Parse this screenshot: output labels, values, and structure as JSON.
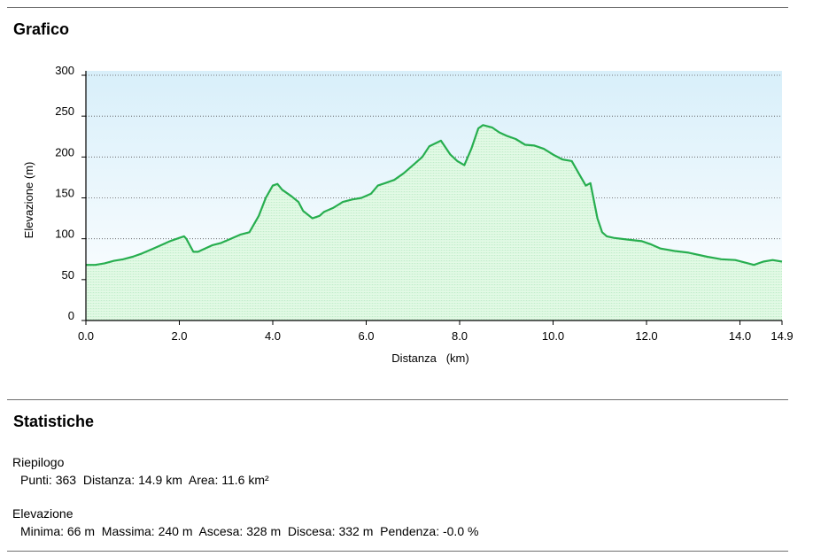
{
  "sections": {
    "chart_title": "Grafico",
    "stats_title": "Statistiche"
  },
  "summary": {
    "heading": "Riepilogo",
    "line": "Punti: 363  Distanza: 14.9 km  Area: 11.6 km²"
  },
  "elevation_stats": {
    "heading": "Elevazione",
    "line": "Minima: 66 m  Massima: 240 m  Ascesa: 328 m  Discesa: 332 m  Pendenza: -0.0 %"
  },
  "colors": {
    "line": "#27ae4f",
    "fill_bottom": "#e8fbe8",
    "sky_top": "#d8effa",
    "sky_bottom": "#ffffff",
    "grid": "#555555"
  },
  "chart_data": {
    "type": "area",
    "xlabel": "Distanza   (km)",
    "ylabel": "Elevazione (m)",
    "xlim": [
      0,
      14.9
    ],
    "ylim": [
      0,
      300
    ],
    "x_ticks": [
      "0.0",
      "2.0",
      "4.0",
      "6.0",
      "8.0",
      "10.0",
      "12.0",
      "14.0",
      "14.9"
    ],
    "x_tick_values": [
      0,
      2,
      4,
      6,
      8,
      10,
      12,
      14,
      14.9
    ],
    "y_ticks": [
      "0",
      "50",
      "100",
      "150",
      "200",
      "250",
      "300"
    ],
    "y_tick_values": [
      0,
      50,
      100,
      150,
      200,
      250,
      300
    ],
    "grid": "horizontal dotted",
    "series": [
      {
        "x": [
          0.0,
          0.2,
          0.4,
          0.6,
          0.8,
          1.0,
          1.2,
          1.4,
          1.6,
          1.8,
          2.0,
          2.1,
          2.15,
          2.3,
          2.4,
          2.55,
          2.7,
          2.9,
          3.1,
          3.3,
          3.5,
          3.7,
          3.85,
          4.0,
          4.1,
          4.2,
          4.4,
          4.55,
          4.65,
          4.85,
          5.0,
          5.1,
          5.3,
          5.5,
          5.7,
          5.9,
          6.1,
          6.25,
          6.4,
          6.6,
          6.8,
          7.0,
          7.2,
          7.35,
          7.6,
          7.8,
          7.95,
          8.1,
          8.25,
          8.4,
          8.5,
          8.7,
          8.85,
          9.0,
          9.2,
          9.4,
          9.6,
          9.8,
          10.0,
          10.2,
          10.4,
          10.55,
          10.7,
          10.8,
          10.95,
          11.05,
          11.15,
          11.3,
          11.6,
          11.9,
          12.1,
          12.3,
          12.6,
          12.9,
          13.3,
          13.6,
          13.9,
          14.1,
          14.3,
          14.5,
          14.7,
          14.9
        ],
        "y": [
          68,
          68,
          70,
          73,
          75,
          78,
          82,
          87,
          92,
          97,
          101,
          103,
          100,
          84,
          84,
          88,
          92,
          95,
          100,
          105,
          108,
          128,
          150,
          165,
          167,
          160,
          152,
          145,
          134,
          125,
          128,
          133,
          138,
          145,
          148,
          150,
          155,
          165,
          168,
          172,
          180,
          190,
          200,
          213,
          220,
          203,
          195,
          190,
          210,
          235,
          239,
          236,
          230,
          226,
          222,
          215,
          214,
          210,
          203,
          197,
          195,
          180,
          165,
          168,
          125,
          108,
          103,
          101,
          99,
          97,
          93,
          88,
          85,
          83,
          78,
          75,
          74,
          71,
          68,
          72,
          74,
          72
        ]
      }
    ]
  }
}
